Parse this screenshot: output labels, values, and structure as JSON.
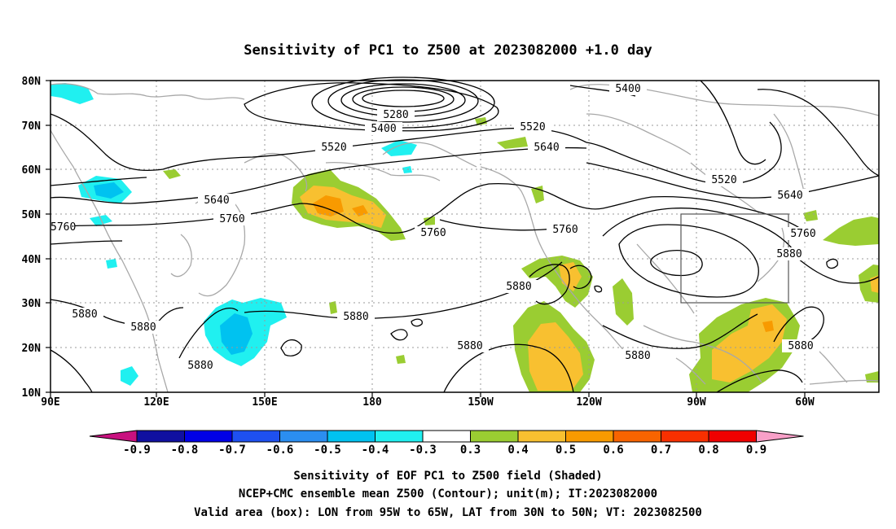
{
  "title": "Sensitivity of PC1 to Z500 at 2023082000 +1.0 day",
  "map": {
    "lon_labels": [
      "90E",
      "120E",
      "150E",
      "180",
      "150W",
      "120W",
      "90W",
      "60W"
    ],
    "lat_labels": [
      "80N",
      "70N",
      "60N",
      "50N",
      "40N",
      "30N",
      "20N",
      "10N"
    ],
    "contour_labels": [
      "5400",
      "5280",
      "5400",
      "5520",
      "5520",
      "5640",
      "5640",
      "5520",
      "5640",
      "5760",
      "5760",
      "5760",
      "5760",
      "5760",
      "5880",
      "5880",
      "5880",
      "5880",
      "5880",
      "5880",
      "5880",
      "5880"
    ]
  },
  "colorbar": {
    "labels": [
      "-0.9",
      "-0.8",
      "-0.7",
      "-0.6",
      "-0.5",
      "-0.4",
      "-0.3",
      "0.3",
      "0.4",
      "0.5",
      "0.6",
      "0.7",
      "0.8",
      "0.9"
    ],
    "colors": [
      "#c8117f",
      "#1010a0",
      "#0000e6",
      "#1e50f0",
      "#2b8ef0",
      "#00c2f0",
      "#20f0f0",
      "#ffffff",
      "#9acd32",
      "#f8c030",
      "#f89a00",
      "#f86400",
      "#f83000",
      "#f00000",
      "#f8a0c8"
    ]
  },
  "captions": [
    "Sensitivity of EOF PC1 to Z500 field (Shaded)",
    "NCEP+CMC ensemble mean Z500 (Contour); unit(m); IT:2023082000",
    "Valid area (box): LON from 95W to 65W, LAT from 30N to 50N; VT: 2023082500"
  ]
}
